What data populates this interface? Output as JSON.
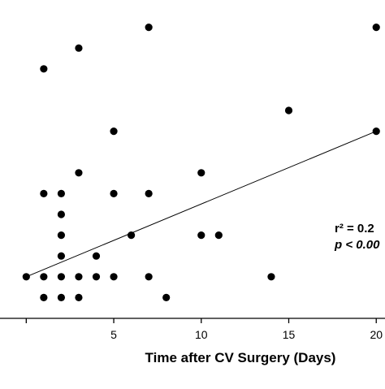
{
  "chart_data": {
    "type": "scatter",
    "title": "",
    "xlabel": "Time after CV Surgery (Days)",
    "ylabel": "",
    "xlim": [
      -1.5,
      20.5
    ],
    "ylim": [
      0,
      15
    ],
    "x_ticks": [
      0,
      5,
      10,
      15,
      20
    ],
    "x_tick_labels": [
      "",
      "5",
      "10",
      "15",
      "20"
    ],
    "grid": false,
    "legend": "none",
    "points": [
      {
        "x": 0,
        "y": 2
      },
      {
        "x": 1,
        "y": 1
      },
      {
        "x": 1,
        "y": 2
      },
      {
        "x": 1,
        "y": 6
      },
      {
        "x": 1,
        "y": 12
      },
      {
        "x": 2,
        "y": 1
      },
      {
        "x": 2,
        "y": 2
      },
      {
        "x": 2,
        "y": 3
      },
      {
        "x": 2,
        "y": 4
      },
      {
        "x": 2,
        "y": 5
      },
      {
        "x": 2,
        "y": 6
      },
      {
        "x": 3,
        "y": 1
      },
      {
        "x": 3,
        "y": 2
      },
      {
        "x": 3,
        "y": 7
      },
      {
        "x": 3,
        "y": 13
      },
      {
        "x": 4,
        "y": 2
      },
      {
        "x": 4,
        "y": 3
      },
      {
        "x": 5,
        "y": 2
      },
      {
        "x": 5,
        "y": 6
      },
      {
        "x": 5,
        "y": 9
      },
      {
        "x": 6,
        "y": 4
      },
      {
        "x": 7,
        "y": 2
      },
      {
        "x": 7,
        "y": 6
      },
      {
        "x": 7,
        "y": 14
      },
      {
        "x": 8,
        "y": 1
      },
      {
        "x": 10,
        "y": 4
      },
      {
        "x": 10,
        "y": 7
      },
      {
        "x": 11,
        "y": 4
      },
      {
        "x": 14,
        "y": 2
      },
      {
        "x": 15,
        "y": 10
      },
      {
        "x": 20,
        "y": 9
      },
      {
        "x": 20,
        "y": 14
      }
    ],
    "regression_line": {
      "x": [
        0,
        20
      ],
      "y": [
        2,
        9
      ]
    },
    "annotations": {
      "r_squared": "r² = 0.2",
      "p_value": "p < 0.00"
    }
  }
}
